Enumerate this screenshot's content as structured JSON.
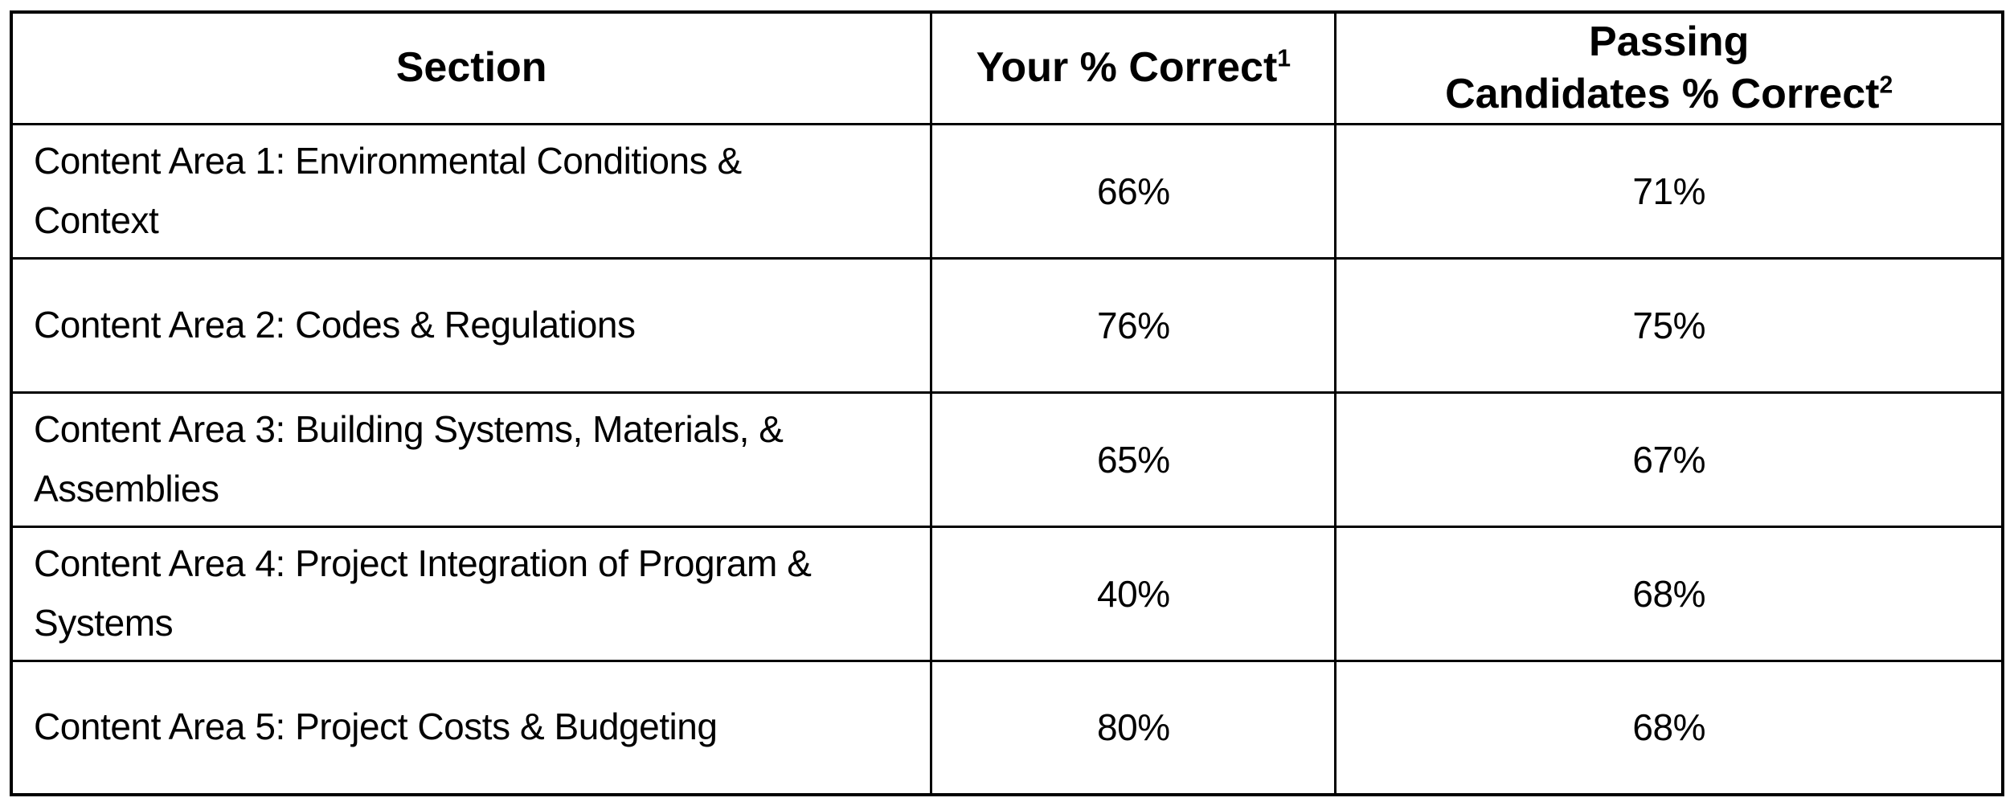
{
  "table": {
    "columns": [
      {
        "label": "Section",
        "sup": ""
      },
      {
        "label": "Your % Correct",
        "sup": "1"
      },
      {
        "label": "Passing\nCandidates % Correct",
        "sup": "2"
      }
    ],
    "rows": [
      {
        "section": "Content Area 1: Environmental Conditions &\nContext",
        "your_pct": "66%",
        "passing_pct": "71%"
      },
      {
        "section": "Content Area 2: Codes & Regulations",
        "your_pct": "76%",
        "passing_pct": "75%"
      },
      {
        "section": "Content Area 3: Building Systems, Materials, &\nAssemblies",
        "your_pct": "65%",
        "passing_pct": "67%"
      },
      {
        "section": "Content Area 4: Project Integration of Program &\nSystems",
        "your_pct": "40%",
        "passing_pct": "68%"
      },
      {
        "section": "Content Area 5: Project Costs & Budgeting",
        "your_pct": "80%",
        "passing_pct": "68%"
      }
    ]
  },
  "colors": {
    "background": "#ffffff",
    "text": "#000000",
    "border": "#000000"
  }
}
